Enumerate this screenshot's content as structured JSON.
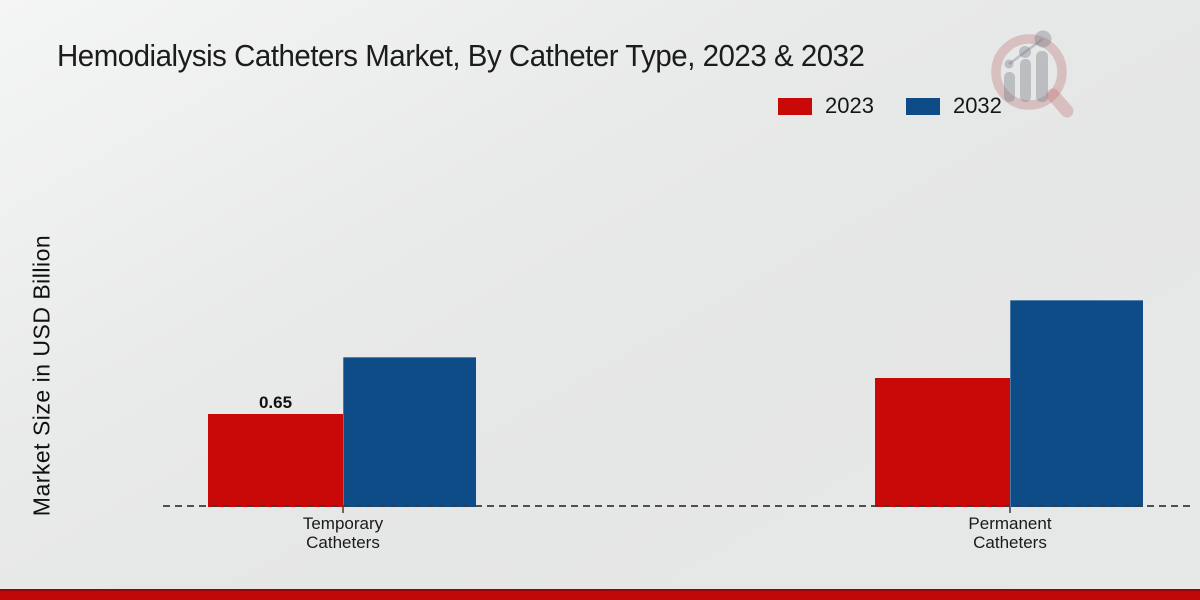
{
  "header": {
    "title": "Hemodialysis Catheters Market, By Catheter Type, 2023 & 2032"
  },
  "legend": {
    "items": [
      {
        "label": "2023",
        "color": "#c90808"
      },
      {
        "label": "2032",
        "color": "#0d4c87"
      }
    ]
  },
  "footer": {
    "stripe_color": "#c10808"
  },
  "watermark": {
    "name": "magnifier-bar-chart-logo",
    "ring_color": "rgba(186,100,100,0.30)",
    "bars_color": "rgba(122,127,138,0.40)"
  },
  "chart_data": {
    "type": "bar",
    "title": "Hemodialysis Catheters Market, By Catheter Type, 2023 & 2032",
    "ylabel": "Market Size in USD Billion",
    "xlabel": "",
    "categories": [
      "Temporary Catheters",
      "Permanent Catheters"
    ],
    "series": [
      {
        "name": "2023",
        "color": "#c90808",
        "values": [
          0.65,
          0.9
        ]
      },
      {
        "name": "2032",
        "color": "#0d4c87",
        "values": [
          1.05,
          1.45
        ]
      }
    ],
    "data_labels": [
      [
        "0.65",
        null
      ],
      [
        null,
        null
      ]
    ],
    "ylim": [
      0,
      1.6
    ],
    "grid": false,
    "y_tick_labels_shown": false,
    "legend_position": "top-right",
    "baseline_style": "dashed"
  }
}
